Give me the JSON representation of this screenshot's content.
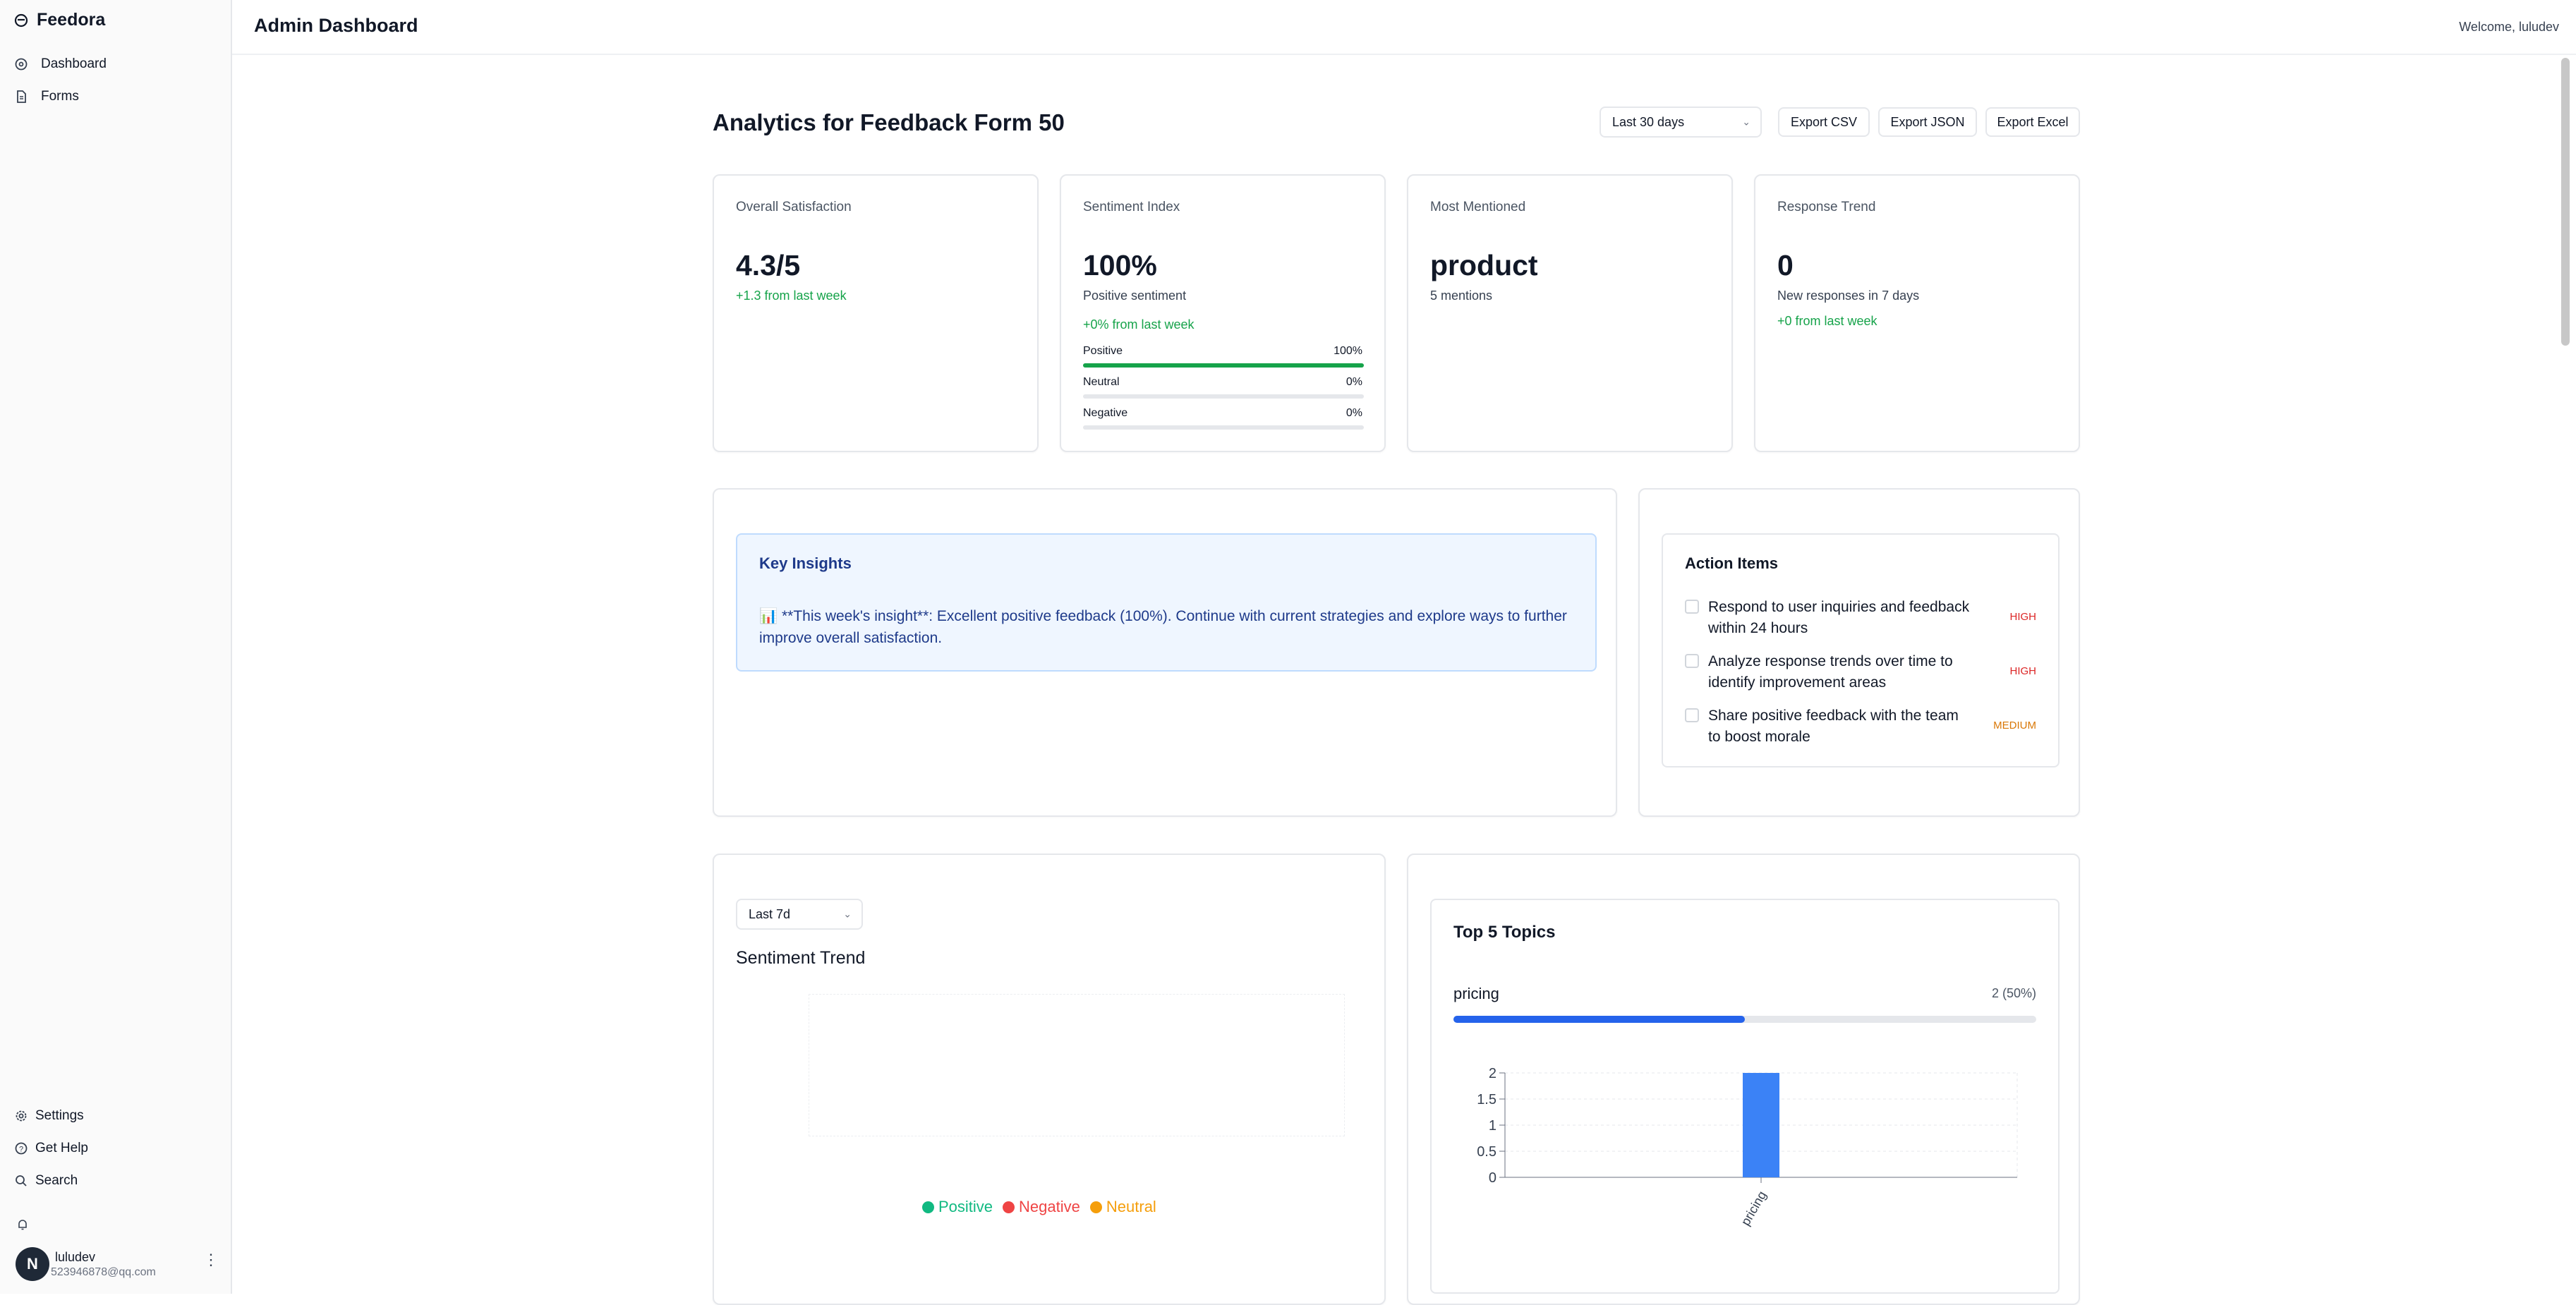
{
  "app": {
    "name": "Feedora"
  },
  "sidebar": {
    "nav": [
      {
        "label": "Dashboard",
        "icon": "dashboard-icon"
      },
      {
        "label": "Forms",
        "icon": "file-icon"
      }
    ],
    "bottom": [
      {
        "label": "Settings",
        "icon": "gear-icon"
      },
      {
        "label": "Get Help",
        "icon": "help-icon"
      },
      {
        "label": "Search",
        "icon": "search-icon"
      }
    ],
    "user": {
      "avatar_letter": "N",
      "name": "luludev",
      "email": "523946878@qq.com"
    }
  },
  "header": {
    "title": "Admin Dashboard",
    "welcome": "Welcome, luludev"
  },
  "page": {
    "title": "Analytics for Feedback Form 50",
    "range_select": "Last 30 days",
    "export_buttons": [
      "Export CSV",
      "Export JSON",
      "Export Excel"
    ]
  },
  "stats": {
    "satisfaction": {
      "label": "Overall Satisfaction",
      "value": "4.3/5",
      "delta": "+1.3 from last week"
    },
    "sentiment": {
      "label": "Sentiment Index",
      "value": "100%",
      "sub": "Positive sentiment",
      "delta": "+0% from last week",
      "bars": [
        {
          "label": "Positive",
          "pct_text": "100%",
          "pct": 100
        },
        {
          "label": "Neutral",
          "pct_text": "0%",
          "pct": 0
        },
        {
          "label": "Negative",
          "pct_text": "0%",
          "pct": 0
        }
      ]
    },
    "mentioned": {
      "label": "Most Mentioned",
      "value": "product",
      "sub": "5 mentions"
    },
    "trend": {
      "label": "Response Trend",
      "value": "0",
      "sub": "New responses in 7 days",
      "delta": "+0 from last week"
    }
  },
  "insights": {
    "title": "Key Insights",
    "text": "📊 **This week's insight**: Excellent positive feedback (100%). Continue with current strategies and explore ways to further improve overall satisfaction."
  },
  "actions": {
    "title": "Action Items",
    "items": [
      {
        "line1": "Respond to user inquiries and feedback",
        "line2": "within 24 hours",
        "priority": "HIGH"
      },
      {
        "line1": "Analyze response trends over time to",
        "line2": "identify improvement areas",
        "priority": "HIGH"
      },
      {
        "line1": "Share positive feedback with the team",
        "line2": "to boost morale",
        "priority": "MEDIUM"
      }
    ]
  },
  "sentiment_trend": {
    "range_select": "Last 7d",
    "title": "Sentiment Trend",
    "legend": [
      {
        "label": "Positive",
        "color": "#10b981"
      },
      {
        "label": "Negative",
        "color": "#ef4444"
      },
      {
        "label": "Neutral",
        "color": "#f59e0b"
      }
    ]
  },
  "topics": {
    "title": "Top 5 Topics",
    "top": {
      "label": "pricing",
      "count_text": "2 (50%)",
      "pct": 50
    }
  },
  "colors": {
    "accent_blue": "#3b82f6",
    "green": "#16a34a",
    "high": "#dc2626",
    "medium": "#d97706"
  },
  "chart_data": {
    "type": "bar",
    "categories": [
      "pricing"
    ],
    "values": [
      2
    ],
    "title": "",
    "xlabel": "",
    "ylabel": "",
    "ylim": [
      0,
      2
    ],
    "yticks": [
      "2",
      "1.5",
      "1",
      "0.5",
      "0"
    ],
    "grid": true,
    "color": "#3b82f6"
  }
}
